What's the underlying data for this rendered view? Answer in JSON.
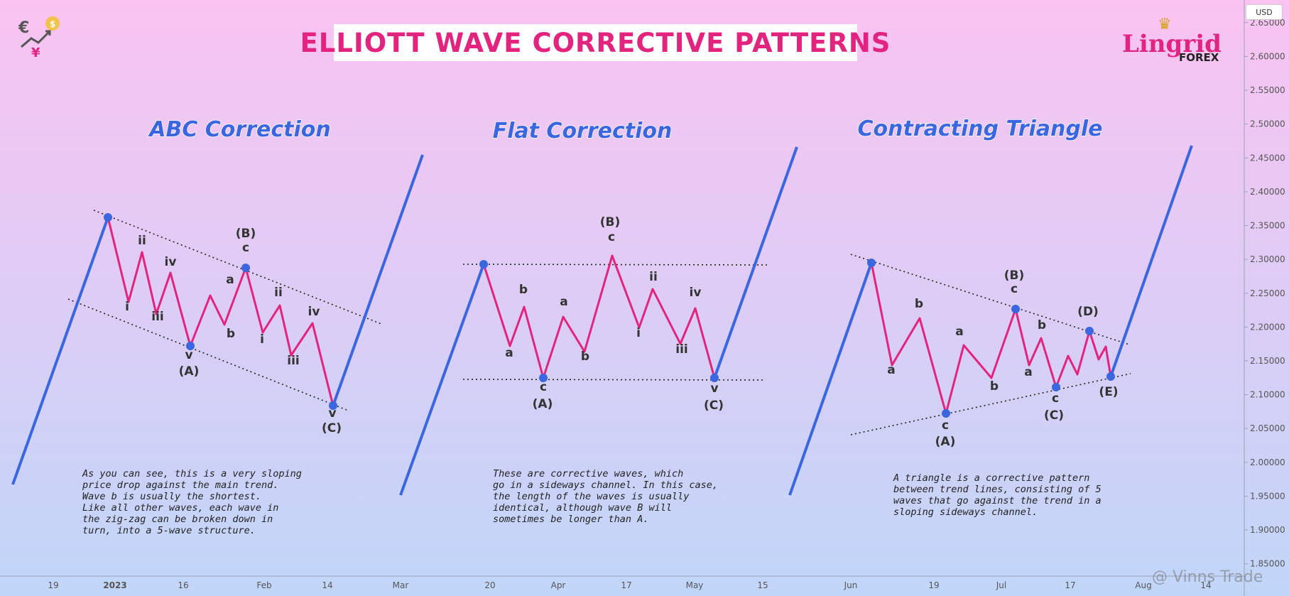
{
  "header": {
    "title": "ELLIOTT WAVE CORRECTIVE PATTERNS"
  },
  "logo": {
    "name": "Lingrid",
    "sub": "FOREX"
  },
  "currency": "USD",
  "watermark": "@ Vinns Trade",
  "colors": {
    "wave": "#e2247e",
    "trend": "#3a66e0",
    "point": "#3a66e0",
    "text": "#333333",
    "bg_top": "#fac3f1",
    "bg_bottom": "#c0d6f9"
  },
  "chart_data": {
    "type": "line",
    "title": "ELLIOTT WAVE CORRECTIVE PATTERNS",
    "ylim": [
      1.835,
      2.675
    ],
    "y_ticks": [
      "2.65000",
      "2.60000",
      "2.55000",
      "2.50000",
      "2.45000",
      "2.40000",
      "2.35000",
      "2.30000",
      "2.25000",
      "2.20000",
      "2.15000",
      "2.10000",
      "2.05000",
      "2.00000",
      "1.95000",
      "1.90000",
      "1.85000"
    ],
    "x_ticks": [
      "19",
      "2023",
      "16",
      "Feb",
      "14",
      "Mar",
      "20",
      "Apr",
      "17",
      "May",
      "15",
      "Jun",
      "19",
      "Jul",
      "17",
      "Aug",
      "14"
    ],
    "patterns": [
      {
        "name": "ABC Correction",
        "description": [
          "As you can see, this is a very sloping",
          "price drop against the main trend.",
          "Wave b is usually the shortest.",
          "Like all other waves, each wave in",
          "the zig-zag can be broken down in",
          "turn, into a 5-wave structure."
        ],
        "trend_in": [
          [
            0.5,
            1.97
          ],
          [
            8.2,
            2.381
          ]
        ],
        "trend_out": [
          [
            11.9,
            2.093
          ],
          [
            13.3,
            2.487
          ]
        ],
        "wave": [
          [
            8.2,
            2.381
          ],
          [
            8.5,
            2.25
          ],
          [
            8.85,
            2.326
          ],
          [
            9.15,
            2.233
          ],
          [
            9.5,
            2.295
          ],
          [
            9.95,
            2.183
          ],
          [
            10.35,
            2.259
          ],
          [
            10.6,
            2.215
          ],
          [
            10.95,
            2.301
          ],
          [
            11.2,
            2.203
          ],
          [
            11.5,
            2.245
          ],
          [
            11.75,
            2.168
          ],
          [
            12.05,
            2.219
          ],
          [
            11.9,
            2.093
          ]
        ],
        "wave_x_fix": [
          null,
          null,
          null,
          null,
          null,
          null,
          null,
          null,
          null,
          null,
          null,
          null,
          12.25,
          12.65
        ],
        "points": [
          [
            8.2,
            2.381
          ],
          [
            9.95,
            2.183
          ],
          [
            10.95,
            2.301
          ],
          [
            12.65,
            2.093
          ]
        ],
        "channel": [
          [
            [
              7.2,
              2.388
            ],
            [
              13.35,
              2.22
            ]
          ],
          [
            [
              6.4,
              2.255
            ],
            [
              13.35,
              2.09
            ]
          ]
        ],
        "labels": [
          [
            "i",
            8.9,
            2.236
          ],
          [
            "ii",
            9.6,
            2.338
          ],
          [
            "iii",
            10.05,
            2.213
          ],
          [
            "iv",
            10.8,
            2.306
          ],
          [
            "v",
            11.4,
            2.167
          ],
          [
            "(A)",
            11.4,
            2.147
          ],
          [
            "a",
            12.25,
            2.283
          ],
          [
            "b",
            13.0,
            2.202
          ],
          [
            "c",
            13.75,
            2.328
          ],
          [
            "(B)",
            13.75,
            2.346
          ],
          [
            "i",
            14.6,
            2.197
          ],
          [
            "ii",
            15.25,
            2.253
          ],
          [
            "iii",
            15.95,
            2.153
          ],
          [
            "iv",
            16.65,
            2.229
          ],
          [
            "v",
            17.25,
            2.077
          ],
          [
            "(C)",
            17.25,
            2.056
          ]
        ]
      },
      {
        "name": "Flat Correction",
        "description": [
          "These are corrective waves, which",
          "go in a sideways channel. In this case,",
          "the length of the waves is usually",
          "identical, although wave B will",
          "sometimes be longer than A."
        ],
        "labels": [
          [
            "a",
            24.8,
            2.178
          ],
          [
            "b",
            25.3,
            2.25
          ],
          [
            "c",
            25.95,
            2.118
          ],
          [
            "(A)",
            25.95,
            2.098
          ],
          [
            "a",
            26.95,
            2.232
          ],
          [
            "b",
            27.6,
            2.174
          ],
          [
            "c",
            28.75,
            2.334
          ],
          [
            "(B)",
            28.75,
            2.355
          ],
          [
            "i",
            29.75,
            2.2
          ],
          [
            "ii",
            30.2,
            2.282
          ],
          [
            "iii",
            31.0,
            2.166
          ],
          [
            "iv",
            31.55,
            2.26
          ],
          [
            "v",
            32.25,
            2.118
          ],
          [
            "(C)",
            32.25,
            2.096
          ]
        ]
      },
      {
        "name": "Contracting Triangle",
        "description": [
          "A triangle is a corrective pattern",
          "between trend lines, consisting of 5",
          "waves that go against the trend in a",
          "sloping sideways channel."
        ],
        "labels": [
          [
            "a",
            38.4,
            2.142
          ],
          [
            "b",
            39.0,
            2.239
          ],
          [
            "c",
            39.95,
            2.059
          ],
          [
            "(A)",
            39.95,
            2.038
          ],
          [
            "a",
            40.8,
            2.2
          ],
          [
            "b",
            41.3,
            2.11
          ],
          [
            "c",
            42.05,
            2.295
          ],
          [
            "(B)",
            42.05,
            2.315
          ],
          [
            "a",
            42.8,
            2.142
          ],
          [
            "b",
            43.1,
            2.21
          ],
          [
            "c",
            43.7,
            2.093
          ],
          [
            "(C)",
            43.7,
            2.073
          ],
          [
            "(D)",
            44.8,
            2.253
          ],
          [
            "(E)",
            45.6,
            2.122
          ]
        ]
      }
    ]
  }
}
